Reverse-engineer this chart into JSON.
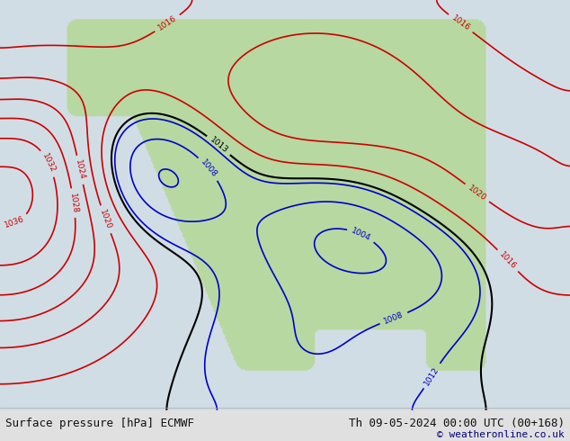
{
  "title_left": "Surface pressure [hPa] ECMWF",
  "title_right": "Th 09-05-2024 00:00 UTC (00+168)",
  "copyright": "© weatheronline.co.uk",
  "background_color": "#e8e8e8",
  "land_color": "#b8d8a0",
  "ocean_color": "#d0d8e8",
  "footer_bg": "#f0f0f0",
  "text_color": "#1a1a2e",
  "isobar_colors": {
    "low": "#0000cc",
    "high": "#cc0000",
    "neutral": "#000000"
  },
  "font_size_footer": 9,
  "font_size_copyright": 8
}
